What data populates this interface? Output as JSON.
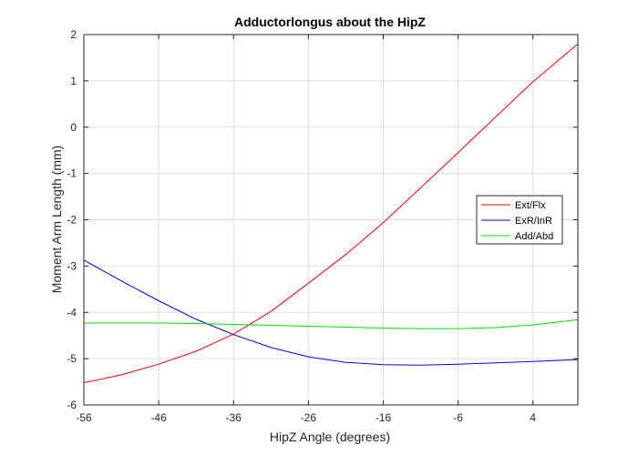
{
  "chart_data": {
    "type": "line",
    "title": "Adductorlongus about the HipZ",
    "xlabel": "HipZ Angle (degrees)",
    "ylabel": "Moment Arm Length (mm)",
    "xlim": [
      -56,
      10
    ],
    "ylim": [
      -6,
      2
    ],
    "xticks": [
      -56,
      -46,
      -36,
      -26,
      -16,
      -6,
      4
    ],
    "xtick_labels": [
      "-56",
      "-46",
      "-36",
      "-26",
      "-16",
      "-6",
      "4"
    ],
    "yticks": [
      2,
      1,
      0,
      -1,
      -2,
      -3,
      -4,
      -5,
      -6
    ],
    "ytick_labels": [
      "2",
      "1",
      "0",
      "-1",
      "-2",
      "-3",
      "-4",
      "-5",
      "-6"
    ],
    "grid": true,
    "legend_position": "right",
    "series": [
      {
        "name": "Ext/Flx",
        "color": "#ff0000",
        "x": [
          -56,
          -51,
          -46,
          -41,
          -36,
          -31,
          -26,
          -21,
          -16,
          -11,
          -6,
          -1,
          4,
          10
        ],
        "y": [
          -5.52,
          -5.35,
          -5.12,
          -4.84,
          -4.47,
          -3.98,
          -3.37,
          -2.75,
          -2.06,
          -1.31,
          -0.55,
          0.22,
          0.98,
          1.8
        ]
      },
      {
        "name": "ExR/InR",
        "color": "#0000ff",
        "x": [
          -56,
          -51,
          -46,
          -41,
          -36,
          -31,
          -26,
          -21,
          -16,
          -11,
          -6,
          -1,
          4,
          10
        ],
        "y": [
          -2.87,
          -3.32,
          -3.75,
          -4.15,
          -4.48,
          -4.76,
          -4.96,
          -5.08,
          -5.13,
          -5.14,
          -5.12,
          -5.09,
          -5.06,
          -5.02
        ]
      },
      {
        "name": "Add/Abd",
        "color": "#00e000",
        "x": [
          -56,
          -51,
          -46,
          -41,
          -36,
          -31,
          -26,
          -21,
          -16,
          -11,
          -6,
          -1,
          4,
          10
        ],
        "y": [
          -4.23,
          -4.23,
          -4.23,
          -4.24,
          -4.26,
          -4.28,
          -4.3,
          -4.32,
          -4.34,
          -4.35,
          -4.35,
          -4.33,
          -4.27,
          -4.16
        ]
      }
    ]
  }
}
